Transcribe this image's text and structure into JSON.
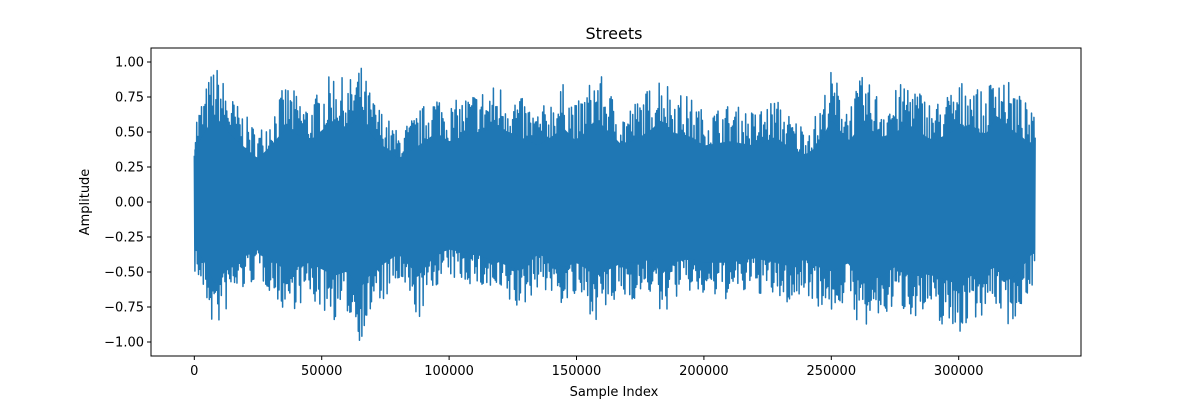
{
  "chart_data": {
    "type": "line",
    "title": "Streets",
    "xlabel": "Sample Index",
    "ylabel": "Amplitude",
    "xlim": [
      -17000,
      348000
    ],
    "ylim": [
      -1.1,
      1.1
    ],
    "x_ticks": [
      0,
      50000,
      100000,
      150000,
      200000,
      250000,
      300000
    ],
    "x_tick_labels": [
      "0",
      "50000",
      "100000",
      "150000",
      "200000",
      "250000",
      "300000"
    ],
    "y_ticks": [
      1.0,
      0.75,
      0.5,
      0.25,
      0.0,
      -0.25,
      -0.5,
      -0.75,
      -1.0
    ],
    "y_tick_labels": [
      "1.00",
      "0.75",
      "0.50",
      "0.25",
      "0.00",
      "−0.25",
      "−0.50",
      "−0.75",
      "−1.00"
    ],
    "grid": false,
    "line_color": "#1f77b4",
    "series": [
      {
        "x": [
          0,
          5000,
          8000,
          15000,
          25000,
          30000,
          36000,
          45000,
          55000,
          60000,
          65000,
          70000,
          80000,
          88000,
          95000,
          100000,
          110000,
          120000,
          128000,
          135000,
          145000,
          150000,
          158000,
          168000,
          175000,
          180000,
          183000,
          188000,
          195000,
          200000,
          210000,
          220000,
          228000,
          235000,
          240000,
          245000,
          250000,
          257000,
          262000,
          270000,
          275000,
          280000,
          290000,
          300000,
          305000,
          310000,
          315000,
          320000,
          325000,
          330000
        ],
        "upper": [
          0.6,
          0.85,
          1.0,
          0.75,
          0.5,
          0.65,
          0.85,
          0.7,
          0.95,
          0.85,
          1.0,
          0.75,
          0.5,
          0.65,
          0.8,
          0.7,
          0.8,
          0.85,
          0.75,
          0.65,
          0.85,
          0.7,
          0.95,
          0.65,
          0.75,
          0.85,
          0.95,
          0.8,
          0.75,
          0.65,
          0.7,
          0.65,
          0.75,
          0.6,
          0.55,
          0.65,
          0.95,
          0.7,
          0.9,
          0.75,
          0.8,
          0.9,
          0.7,
          0.85,
          0.9,
          0.75,
          1.0,
          0.85,
          0.75,
          0.6
        ],
        "lower": [
          -0.5,
          -0.75,
          -0.95,
          -0.7,
          -0.55,
          -0.65,
          -0.8,
          -0.7,
          -0.85,
          -0.8,
          -1.0,
          -0.8,
          -0.6,
          -0.85,
          -0.6,
          -0.55,
          -0.6,
          -0.7,
          -0.8,
          -0.6,
          -0.75,
          -0.7,
          -0.85,
          -0.7,
          -0.7,
          -0.65,
          -0.85,
          -0.7,
          -0.65,
          -0.7,
          -0.7,
          -0.65,
          -0.7,
          -0.75,
          -0.65,
          -0.75,
          -0.8,
          -0.7,
          -0.95,
          -0.85,
          -0.75,
          -0.8,
          -0.85,
          -0.95,
          -0.85,
          -0.8,
          -0.75,
          -0.9,
          -0.75,
          -0.55
        ]
      }
    ]
  }
}
